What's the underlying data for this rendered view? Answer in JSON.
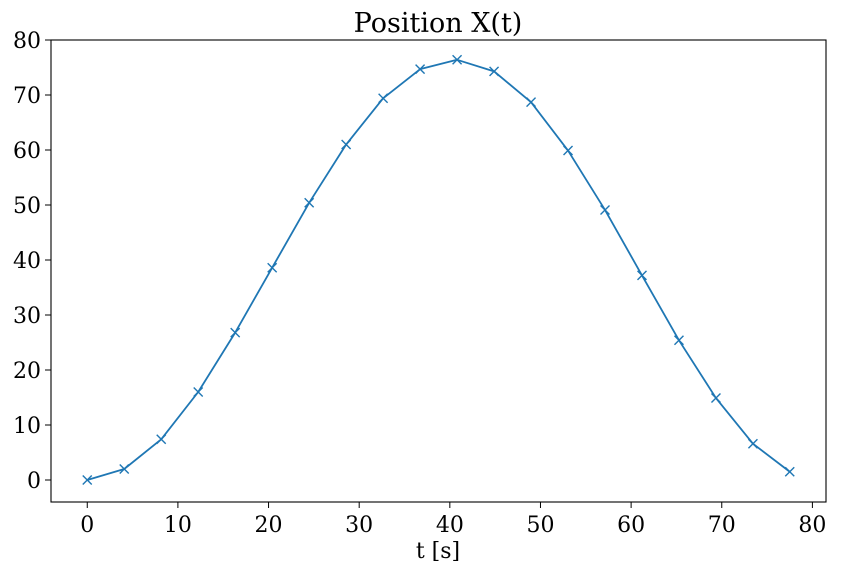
{
  "chart_data": {
    "type": "line",
    "title": "Position X(t)",
    "xlabel": "t [s]",
    "ylabel": "",
    "xlim": [
      -4,
      81.5
    ],
    "ylim": [
      -4,
      80
    ],
    "xticks": [
      0,
      10,
      20,
      30,
      40,
      50,
      60,
      70,
      80
    ],
    "yticks": [
      0,
      10,
      20,
      30,
      40,
      50,
      60,
      70,
      80
    ],
    "grid": false,
    "series": [
      {
        "color": "#1f77b4",
        "marker": "x",
        "x": [
          0,
          4.08,
          8.16,
          12.24,
          16.32,
          20.4,
          24.48,
          28.56,
          32.64,
          36.72,
          40.8,
          44.88,
          48.96,
          53.04,
          57.12,
          61.2,
          65.28,
          69.36,
          73.44,
          77.5
        ],
        "y": [
          0,
          2.0,
          7.4,
          16.0,
          26.8,
          38.6,
          50.4,
          61.0,
          69.4,
          74.7,
          76.4,
          74.3,
          68.7,
          59.9,
          49.1,
          37.2,
          25.4,
          14.9,
          6.6,
          1.5
        ]
      }
    ]
  }
}
